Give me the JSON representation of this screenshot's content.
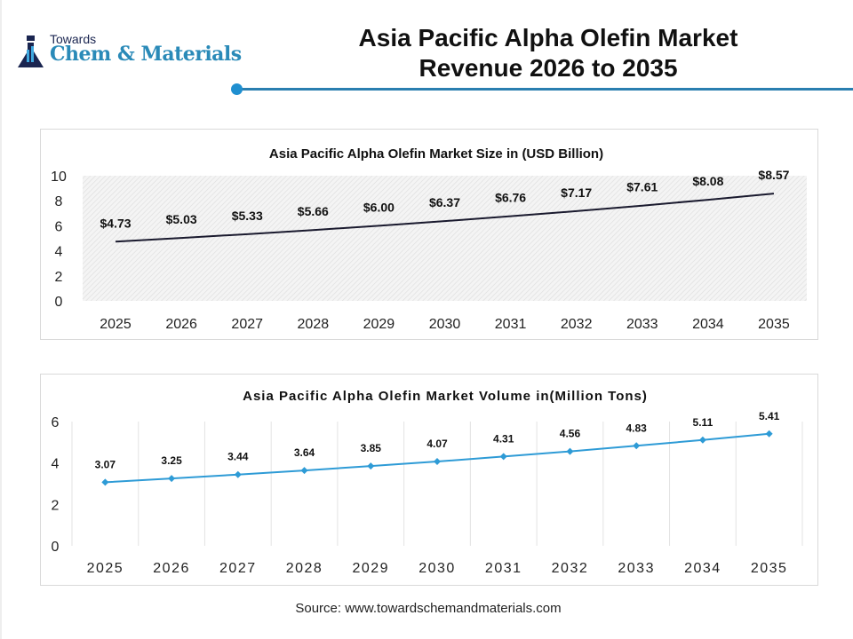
{
  "logo": {
    "line1": "Towards",
    "line2": "Chem & Materials"
  },
  "header": {
    "title_line1": "Asia Pacific Alpha Olefin Market",
    "title_line2": "Revenue 2026 to 2035"
  },
  "source": "Source: www.towardschemandmaterials.com",
  "colors": {
    "accent": "#1f8fd0",
    "line1": "#1a1a2e",
    "line2": "#2e9bd6"
  },
  "chart_data": [
    {
      "type": "line",
      "title": "Asia Pacific Alpha Olefin Market Size in (USD Billion)",
      "categories": [
        "2025",
        "2026",
        "2027",
        "2028",
        "2029",
        "2030",
        "2031",
        "2032",
        "2033",
        "2034",
        "2035"
      ],
      "values": [
        4.73,
        5.03,
        5.33,
        5.66,
        6.0,
        6.37,
        6.76,
        7.17,
        7.61,
        8.08,
        8.57
      ],
      "labels": [
        "$4.73",
        "$5.03",
        "$5.33",
        "$5.66",
        "$6.00",
        "$6.37",
        "$6.76",
        "$7.17",
        "$7.61",
        "$8.08",
        "$8.57"
      ],
      "yticks": [
        "0",
        "2",
        "4",
        "6",
        "8",
        "10"
      ],
      "ylim": [
        0,
        10
      ],
      "grid": false
    },
    {
      "type": "line",
      "title": "Asia Pacific Alpha Olefin Market Volume in(Million Tons)",
      "categories": [
        "2025",
        "2026",
        "2027",
        "2028",
        "2029",
        "2030",
        "2031",
        "2032",
        "2033",
        "2034",
        "2035"
      ],
      "values": [
        3.07,
        3.25,
        3.44,
        3.64,
        3.85,
        4.07,
        4.31,
        4.56,
        4.83,
        5.11,
        5.41
      ],
      "labels": [
        "3.07",
        "3.25",
        "3.44",
        "3.64",
        "3.85",
        "4.07",
        "4.31",
        "4.56",
        "4.83",
        "5.11",
        "5.41"
      ],
      "yticks": [
        "0",
        "2",
        "4",
        "6"
      ],
      "ylim": [
        0,
        6
      ],
      "grid": true
    }
  ]
}
